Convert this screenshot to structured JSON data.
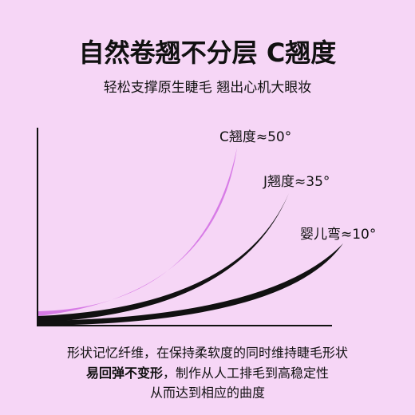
{
  "header": {
    "title": "自然卷翘不分层 C翘度",
    "subtitle": "轻松支撑原生睫毛 翘出心机大眼妆"
  },
  "curves": [
    {
      "label": "C翘度≈50°"
    },
    {
      "label": "J翘度≈35°"
    },
    {
      "label": "婴儿弯≈10°"
    }
  ],
  "footer": {
    "line1": "形状记忆纤维，在保持柔软度的同时维持睫毛形状",
    "line2_bold": "易回弹不变形",
    "line2_rest": "，制作从人工排毛到高稳定性",
    "line3": "从而达到相应的曲度"
  }
}
